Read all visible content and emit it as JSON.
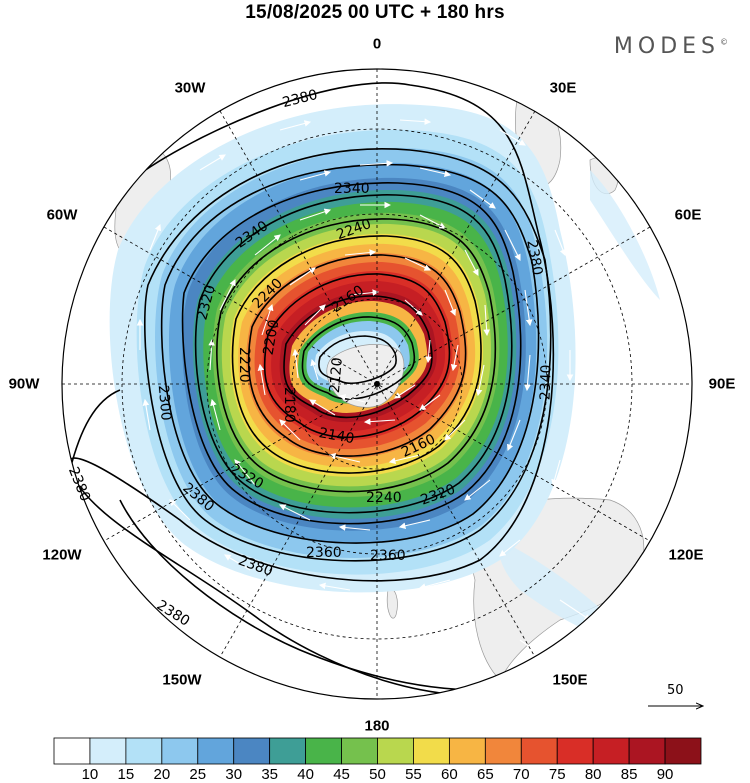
{
  "header": {
    "title": "15/08/2025  00 UTC  + 180 hrs",
    "brand": "MODES"
  },
  "longitude_labels": [
    "0",
    "30E",
    "60E",
    "90E",
    "120E",
    "150E",
    "180",
    "150W",
    "120W",
    "90W",
    "60W",
    "30W"
  ],
  "contour_labels": [
    "2380",
    "2380",
    "2380",
    "2380",
    "2380",
    "2380",
    "2360",
    "2360",
    "2340",
    "2340",
    "2340",
    "2320",
    "2320",
    "2320",
    "2300",
    "2240",
    "2240",
    "2240",
    "2220",
    "2200",
    "2180",
    "2160",
    "2160",
    "2140",
    "2120"
  ],
  "vector_reference": "50",
  "colorbar": {
    "colors": [
      "#ffffff",
      "#d4eefb",
      "#b3e1f7",
      "#8dc8ee",
      "#62a5dc",
      "#4b86c2",
      "#3e9e96",
      "#49b449",
      "#75c14d",
      "#b9d74e",
      "#f2dc4a",
      "#f7b544",
      "#f1863b",
      "#e6532f",
      "#d92e27",
      "#c61f24",
      "#ab1522",
      "#8c1119"
    ],
    "ticks": [
      "10",
      "15",
      "20",
      "25",
      "30",
      "35",
      "40",
      "45",
      "50",
      "55",
      "60",
      "65",
      "70",
      "75",
      "80",
      "85",
      "90"
    ]
  }
}
